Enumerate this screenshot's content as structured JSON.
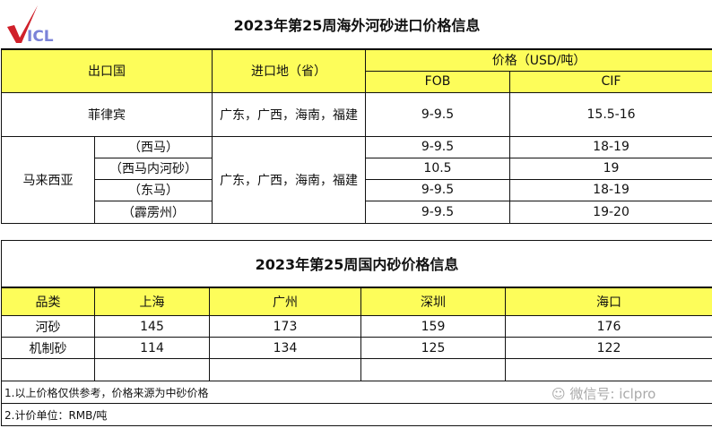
{
  "logo": {
    "text": "ICL",
    "check_color": "#d0202a",
    "text_color": "#7b83d8"
  },
  "overseas": {
    "title": "2023年第25周海外河砂进口价格信息",
    "headers": {
      "export_country": "出口国",
      "import_place": "进口地（省）",
      "price": "价格（USD/吨）",
      "fob": "FOB",
      "cif": "CIF"
    },
    "philippines": {
      "country": "菲律宾",
      "place": "广东，广西，海南，福建",
      "fob": "9-9.5",
      "cif": "15.5-16"
    },
    "malaysia": {
      "country": "马来西亚",
      "place": "广东，广西，海南，福建",
      "rows": [
        {
          "region": "（西马）",
          "fob": "9-9.5",
          "cif": "18-19"
        },
        {
          "region": "（西马内河砂）",
          "fob": "10.5",
          "cif": "19"
        },
        {
          "region": "（东马）",
          "fob": "9-9.5",
          "cif": "18-19"
        },
        {
          "region": "（霹雳州）",
          "fob": "9-9.5",
          "cif": "19-20"
        }
      ]
    }
  },
  "domestic": {
    "title": "2023年第25周国内砂价格信息",
    "headers": [
      "品类",
      "上海",
      "广州",
      "深圳",
      "海口"
    ],
    "rows": [
      [
        "河砂",
        "145",
        "173",
        "159",
        "176"
      ],
      [
        "机制砂",
        "114",
        "134",
        "125",
        "122"
      ]
    ],
    "notes": [
      "1.以上价格仅供参考，价格来源为中砂价格",
      "2.计价单位：RMB/吨"
    ]
  },
  "watermark": "微信号: iclpro",
  "colors": {
    "header_bg": "#fdfd5a"
  }
}
